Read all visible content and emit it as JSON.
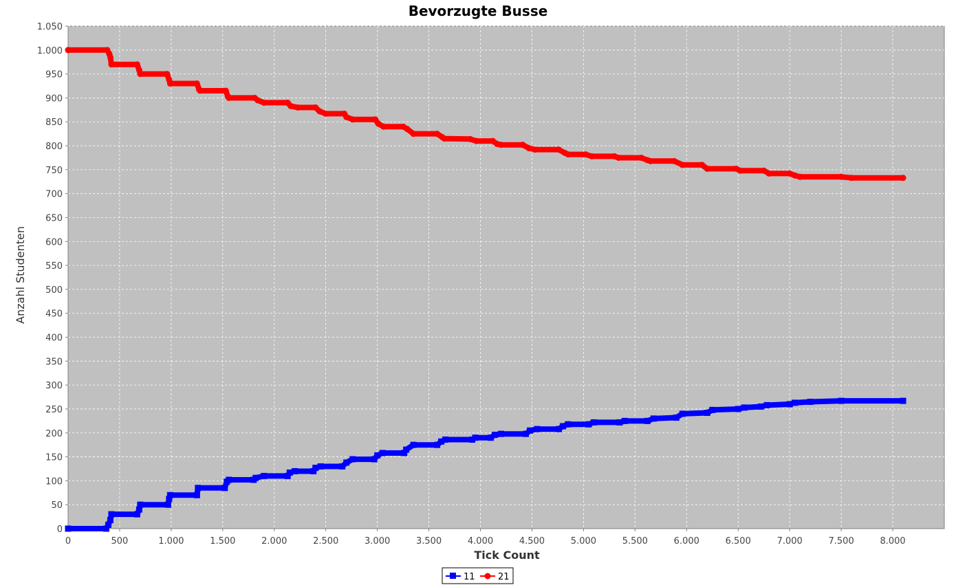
{
  "chart_data": {
    "type": "line",
    "title": "Bevorzugte Busse",
    "xlabel": "Tick Count",
    "ylabel": "Anzahl Studenten",
    "xlim": [
      0,
      8500
    ],
    "ylim": [
      0,
      1050
    ],
    "xticks": [
      0,
      500,
      1000,
      1500,
      2000,
      2500,
      3000,
      3500,
      4000,
      4500,
      5000,
      5500,
      6000,
      6500,
      7000,
      7500,
      8000
    ],
    "xtick_labels": [
      "0",
      "500",
      "1.000",
      "1.500",
      "2.000",
      "2.500",
      "3.000",
      "3.500",
      "4.000",
      "4.500",
      "5.000",
      "5.500",
      "6.000",
      "6.500",
      "7.000",
      "7.500",
      "8.000"
    ],
    "yticks": [
      0,
      50,
      100,
      150,
      200,
      250,
      300,
      350,
      400,
      450,
      500,
      550,
      600,
      650,
      700,
      750,
      800,
      850,
      900,
      950,
      1000,
      1050
    ],
    "ytick_labels": [
      "0",
      "50",
      "100",
      "150",
      "200",
      "250",
      "300",
      "350",
      "400",
      "450",
      "500",
      "550",
      "600",
      "650",
      "700",
      "750",
      "800",
      "850",
      "900",
      "950",
      "1.000",
      "1.050"
    ],
    "grid": true,
    "background": "#c0c0c0",
    "legend_position": "bottom-center",
    "series": [
      {
        "name": "11",
        "color": "#0000ff",
        "marker": "square",
        "points": [
          [
            0,
            0
          ],
          [
            370,
            0
          ],
          [
            390,
            8
          ],
          [
            410,
            18
          ],
          [
            420,
            30
          ],
          [
            670,
            30
          ],
          [
            690,
            40
          ],
          [
            700,
            50
          ],
          [
            970,
            50
          ],
          [
            980,
            62
          ],
          [
            990,
            70
          ],
          [
            1250,
            70
          ],
          [
            1260,
            85
          ],
          [
            1520,
            85
          ],
          [
            1540,
            98
          ],
          [
            1560,
            102
          ],
          [
            1800,
            102
          ],
          [
            1820,
            106
          ],
          [
            1900,
            110
          ],
          [
            2130,
            110
          ],
          [
            2150,
            117
          ],
          [
            2200,
            120
          ],
          [
            2380,
            120
          ],
          [
            2400,
            127
          ],
          [
            2450,
            130
          ],
          [
            2660,
            130
          ],
          [
            2700,
            138
          ],
          [
            2760,
            145
          ],
          [
            2970,
            145
          ],
          [
            3000,
            153
          ],
          [
            3050,
            158
          ],
          [
            3260,
            158
          ],
          [
            3280,
            165
          ],
          [
            3350,
            175
          ],
          [
            3580,
            175
          ],
          [
            3620,
            182
          ],
          [
            3660,
            186
          ],
          [
            3920,
            186
          ],
          [
            3950,
            190
          ],
          [
            4100,
            190
          ],
          [
            4140,
            196
          ],
          [
            4200,
            198
          ],
          [
            4440,
            198
          ],
          [
            4480,
            205
          ],
          [
            4550,
            208
          ],
          [
            4760,
            208
          ],
          [
            4800,
            214
          ],
          [
            4850,
            218
          ],
          [
            5050,
            218
          ],
          [
            5100,
            222
          ],
          [
            5350,
            222
          ],
          [
            5400,
            225
          ],
          [
            5620,
            225
          ],
          [
            5680,
            230
          ],
          [
            5900,
            232
          ],
          [
            5960,
            240
          ],
          [
            6200,
            242
          ],
          [
            6250,
            248
          ],
          [
            6500,
            250
          ],
          [
            6560,
            253
          ],
          [
            6720,
            255
          ],
          [
            6780,
            258
          ],
          [
            7000,
            260
          ],
          [
            7050,
            263
          ],
          [
            7200,
            265
          ],
          [
            7500,
            267
          ],
          [
            8100,
            267
          ]
        ]
      },
      {
        "name": "21",
        "color": "#ff0000",
        "marker": "circle",
        "points": [
          [
            0,
            1000
          ],
          [
            380,
            1000
          ],
          [
            400,
            992
          ],
          [
            410,
            985
          ],
          [
            420,
            970
          ],
          [
            670,
            970
          ],
          [
            690,
            958
          ],
          [
            700,
            950
          ],
          [
            960,
            950
          ],
          [
            980,
            938
          ],
          [
            990,
            930
          ],
          [
            1250,
            930
          ],
          [
            1270,
            918
          ],
          [
            1280,
            915
          ],
          [
            1530,
            915
          ],
          [
            1550,
            903
          ],
          [
            1560,
            900
          ],
          [
            1810,
            900
          ],
          [
            1840,
            895
          ],
          [
            1900,
            890
          ],
          [
            2130,
            890
          ],
          [
            2160,
            883
          ],
          [
            2230,
            880
          ],
          [
            2400,
            880
          ],
          [
            2440,
            872
          ],
          [
            2500,
            867
          ],
          [
            2680,
            867
          ],
          [
            2700,
            860
          ],
          [
            2760,
            855
          ],
          [
            2980,
            855
          ],
          [
            3010,
            846
          ],
          [
            3060,
            840
          ],
          [
            3250,
            840
          ],
          [
            3290,
            835
          ],
          [
            3350,
            825
          ],
          [
            3580,
            825
          ],
          [
            3630,
            818
          ],
          [
            3650,
            815
          ],
          [
            3900,
            814
          ],
          [
            3960,
            810
          ],
          [
            4120,
            810
          ],
          [
            4160,
            804
          ],
          [
            4200,
            802
          ],
          [
            4410,
            802
          ],
          [
            4470,
            795
          ],
          [
            4530,
            792
          ],
          [
            4760,
            792
          ],
          [
            4820,
            785
          ],
          [
            4850,
            782
          ],
          [
            5020,
            782
          ],
          [
            5080,
            778
          ],
          [
            5300,
            778
          ],
          [
            5340,
            775
          ],
          [
            5560,
            775
          ],
          [
            5620,
            770
          ],
          [
            5650,
            768
          ],
          [
            5880,
            768
          ],
          [
            5960,
            760
          ],
          [
            6150,
            760
          ],
          [
            6200,
            752
          ],
          [
            6480,
            752
          ],
          [
            6520,
            748
          ],
          [
            6750,
            748
          ],
          [
            6800,
            742
          ],
          [
            7000,
            742
          ],
          [
            7050,
            738
          ],
          [
            7100,
            735
          ],
          [
            7500,
            735
          ],
          [
            7600,
            733
          ],
          [
            8100,
            733
          ]
        ]
      }
    ]
  }
}
